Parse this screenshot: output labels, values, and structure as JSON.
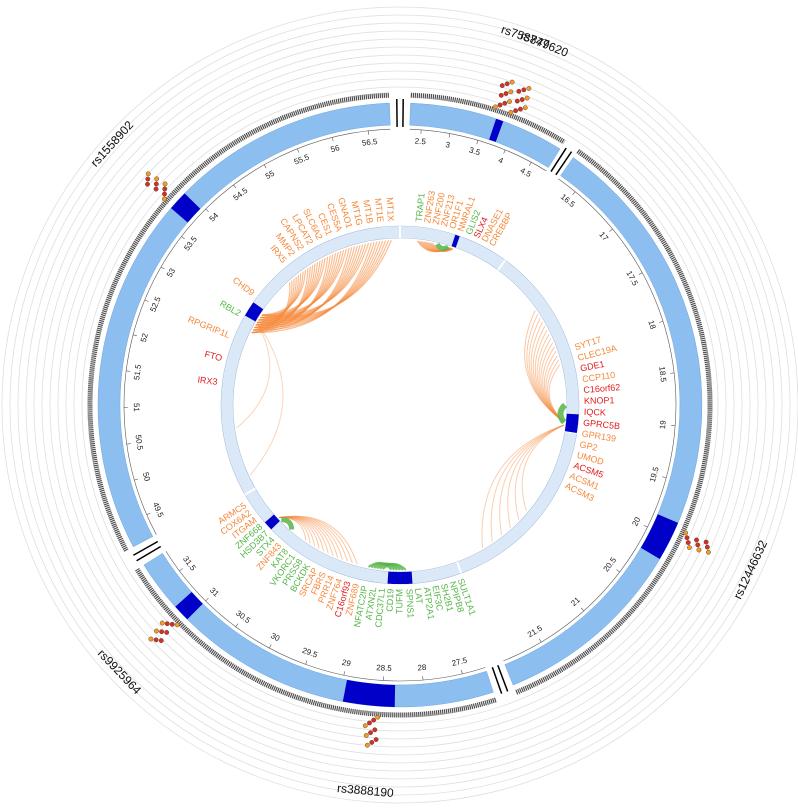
{
  "chart_data": {
    "type": "circos",
    "segments": [
      {
        "range": [
          2.3,
          4.8
        ],
        "ticks": [
          2.5,
          3,
          3.5,
          4,
          4.5
        ],
        "highlights": [
          [
            3.68,
            3.8
          ]
        ]
      },
      {
        "range": [
          16.3,
          21.9
        ],
        "ticks": [
          16.5,
          17,
          17.5,
          18,
          18.5,
          19,
          19.5,
          20,
          20.5,
          21,
          21.5
        ],
        "highlights": [
          [
            19.85,
            20.2
          ]
        ]
      },
      {
        "range": [
          27.2,
          31.8
        ],
        "ticks": [
          27.5,
          28,
          28.5,
          29,
          29.5,
          30,
          30.5,
          31,
          31.5
        ],
        "highlights": [
          [
            28.35,
            28.95
          ],
          [
            31.0,
            31.2
          ]
        ]
      },
      {
        "range": [
          49.2,
          56.8
        ],
        "ticks": [
          49.5,
          50,
          50.5,
          51,
          51.5,
          52,
          52.5,
          53,
          53.5,
          54,
          54.5,
          55,
          55.5,
          56,
          56.5
        ],
        "highlights": [
          [
            53.7,
            53.95
          ]
        ]
      }
    ],
    "snps": [
      {
        "name": "rs758747",
        "segment": 0,
        "position": 3.7
      },
      {
        "name": "rs879620",
        "segment": 0,
        "position": 3.95
      },
      {
        "name": "rs12446632",
        "segment": 1,
        "position": 19.95
      },
      {
        "name": "rs3888190",
        "segment": 2,
        "position": 28.6
      },
      {
        "name": "rs9925964",
        "segment": 2,
        "position": 31.1
      },
      {
        "name": "rs1558902",
        "segment": 3,
        "position": 53.8
      }
    ],
    "gene_clusters": [
      {
        "genes": [
          {
            "name": "IRX5",
            "color": "#f5883a"
          },
          {
            "name": "MMP2",
            "color": "#f5883a"
          },
          {
            "name": "CAPNS2",
            "color": "#f5883a"
          },
          {
            "name": "LPCAT2",
            "color": "#f5883a"
          },
          {
            "name": "SLC6A2",
            "color": "#f5883a"
          },
          {
            "name": "CES1",
            "color": "#f5883a"
          },
          {
            "name": "CES5A",
            "color": "#f5883a"
          },
          {
            "name": "GNAO1",
            "color": "#f5883a"
          },
          {
            "name": "MT1G",
            "color": "#f5883a"
          },
          {
            "name": "MT1B",
            "color": "#f5883a"
          },
          {
            "name": "MT1E",
            "color": "#f5883a"
          },
          {
            "name": "MT1X",
            "color": "#f5883a"
          }
        ]
      },
      {
        "genes": [
          {
            "name": "IRX3",
            "color": "#e31a1c"
          },
          {
            "name": "FTO",
            "color": "#e31a1c"
          },
          {
            "name": "RPGRIP1L",
            "color": "#f5883a"
          },
          {
            "name": "RBL2",
            "color": "#55b548"
          },
          {
            "name": "CHD9",
            "color": "#f5883a"
          }
        ]
      },
      {
        "genes": [
          {
            "name": "TRAP1",
            "color": "#55b548"
          },
          {
            "name": "ZNF263",
            "color": "#f5883a"
          },
          {
            "name": "ZNF200",
            "color": "#f5883a"
          },
          {
            "name": "ZNF213",
            "color": "#f5883a"
          },
          {
            "name": "OR1F1",
            "color": "#f5883a"
          },
          {
            "name": "NMRAL1",
            "color": "#f5883a"
          },
          {
            "name": "GLIS2",
            "color": "#55b548"
          },
          {
            "name": "SLX4",
            "color": "#e31a1c"
          },
          {
            "name": "DNASE1",
            "color": "#f5883a"
          },
          {
            "name": "CREBBP",
            "color": "#f5883a"
          }
        ]
      },
      {
        "genes": [
          {
            "name": "SYT17",
            "color": "#f5883a"
          },
          {
            "name": "CLEC19A",
            "color": "#f5883a"
          },
          {
            "name": "GDE1",
            "color": "#e31a1c"
          },
          {
            "name": "CCP110",
            "color": "#f5883a"
          },
          {
            "name": "C16orf62",
            "color": "#e31a1c"
          },
          {
            "name": "KNOP1",
            "color": "#e31a1c"
          },
          {
            "name": "IQCK",
            "color": "#e31a1c"
          },
          {
            "name": "GPRC5B",
            "color": "#e31a1c"
          },
          {
            "name": "GPR139",
            "color": "#f5883a"
          },
          {
            "name": "GP2",
            "color": "#f5883a"
          },
          {
            "name": "UMOD",
            "color": "#f5883a"
          },
          {
            "name": "ACSM5",
            "color": "#e31a1c"
          },
          {
            "name": "ACSM1",
            "color": "#f5883a"
          },
          {
            "name": "ACSM3",
            "color": "#f5883a"
          }
        ]
      },
      {
        "genes": [
          {
            "name": "SULT1A1",
            "color": "#55b548"
          },
          {
            "name": "NPIPB8",
            "color": "#55b548"
          },
          {
            "name": "SH2B1",
            "color": "#55b548"
          },
          {
            "name": "EIF3C",
            "color": "#55b548"
          },
          {
            "name": "ATP2A1",
            "color": "#55b548"
          },
          {
            "name": "LAT",
            "color": "#55b548"
          },
          {
            "name": "SPNS1",
            "color": "#55b548"
          },
          {
            "name": "TUFM",
            "color": "#55b548"
          },
          {
            "name": "CD19",
            "color": "#55b548"
          },
          {
            "name": "CDC37L1",
            "color": "#55b548"
          },
          {
            "name": "ATXN2L",
            "color": "#55b548"
          },
          {
            "name": "NFATC2IP",
            "color": "#55b548"
          },
          {
            "name": "ZNF689",
            "color": "#f5883a"
          },
          {
            "name": "C16orf93",
            "color": "#e31a1c"
          },
          {
            "name": "ZNF764",
            "color": "#f5883a"
          },
          {
            "name": "PRR14",
            "color": "#f5883a"
          },
          {
            "name": "FBRS",
            "color": "#f5883a"
          },
          {
            "name": "SRCAP",
            "color": "#f5883a"
          },
          {
            "name": "BCKDK",
            "color": "#55b548"
          },
          {
            "name": "PRSS8",
            "color": "#55b548"
          },
          {
            "name": "VKORC1",
            "color": "#55b548"
          },
          {
            "name": "KAT8",
            "color": "#55b548"
          },
          {
            "name": "ZNF843",
            "color": "#f5883a"
          },
          {
            "name": "STX4",
            "color": "#55b548"
          },
          {
            "name": "HSD3B7",
            "color": "#55b548"
          },
          {
            "name": "ZNF668",
            "color": "#55b548"
          },
          {
            "name": "ITGAM",
            "color": "#f5883a"
          },
          {
            "name": "COX6A2",
            "color": "#f5883a"
          },
          {
            "name": "ARMC5",
            "color": "#f5883a"
          }
        ]
      }
    ]
  }
}
